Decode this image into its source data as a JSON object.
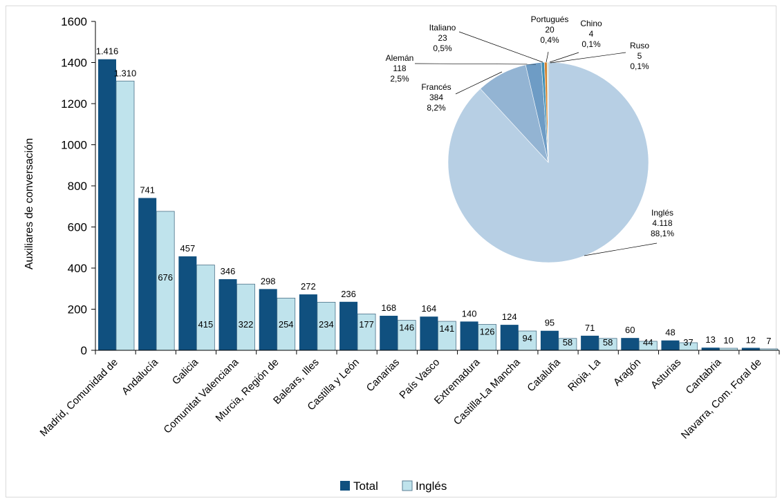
{
  "chart_data": [
    {
      "type": "bar",
      "ylabel": "Auxiliares de conversación",
      "ylim": [
        0,
        1600
      ],
      "yticks": [
        0,
        200,
        400,
        600,
        800,
        1000,
        1200,
        1400,
        1600
      ],
      "categories": [
        "Madrid, Comunidad de",
        "Andalucía",
        "Galicia",
        "Comunitat Valenciana",
        "Murcia, Región de",
        "Balears, Illes",
        "Castilla y León",
        "Canarias",
        "País Vasco",
        "Extremadura",
        "Castilla-La Mancha",
        "Cataluña",
        "Rioja, La",
        "Aragón",
        "Asturias",
        "Cantabria",
        "Navarra, Com. Foral de"
      ],
      "series": [
        {
          "name": "Total",
          "color": "#10507f",
          "values": [
            1416,
            741,
            457,
            346,
            298,
            272,
            236,
            168,
            164,
            140,
            124,
            95,
            71,
            60,
            48,
            13,
            12
          ],
          "labels": [
            "1.416",
            "741",
            "457",
            "346",
            "298",
            "272",
            "236",
            "168",
            "164",
            "140",
            "124",
            "95",
            "71",
            "60",
            "48",
            "13",
            "12"
          ]
        },
        {
          "name": "Inglés",
          "color": "#bfe3ec",
          "values": [
            1310,
            676,
            415,
            322,
            254,
            234,
            177,
            146,
            141,
            126,
            94,
            58,
            58,
            44,
            37,
            10,
            7
          ],
          "labels": [
            "1.310",
            "676",
            "415",
            "322",
            "254",
            "234",
            "177",
            "146",
            "141",
            "126",
            "94",
            "58",
            "58",
            "44",
            "37",
            "10",
            "7"
          ]
        }
      ],
      "legend_position": "bottom-center",
      "grid": false
    },
    {
      "type": "pie",
      "slices": [
        {
          "name": "Inglés",
          "value": 4118,
          "value_label": "4.118",
          "percent_label": "88,1%",
          "color": "#b7cfe4"
        },
        {
          "name": "Francés",
          "value": 384,
          "value_label": "384",
          "percent_label": "8,2%",
          "color": "#93b4d3"
        },
        {
          "name": "Alemán",
          "value": 118,
          "value_label": "118",
          "percent_label": "2,5%",
          "color": "#6e9cc5"
        },
        {
          "name": "Italiano",
          "value": 23,
          "value_label": "23",
          "percent_label": "0,5%",
          "color": "#3f8fb3"
        },
        {
          "name": "Portugués",
          "value": 20,
          "value_label": "20",
          "percent_label": "0,4%",
          "color": "#d5832e"
        },
        {
          "name": "Chino",
          "value": 4,
          "value_label": "4",
          "percent_label": "0,1%",
          "color": "#2e5d8a"
        },
        {
          "name": "Ruso",
          "value": 5,
          "value_label": "5",
          "percent_label": "0,1%",
          "color": "#8aa33a"
        }
      ]
    }
  ]
}
